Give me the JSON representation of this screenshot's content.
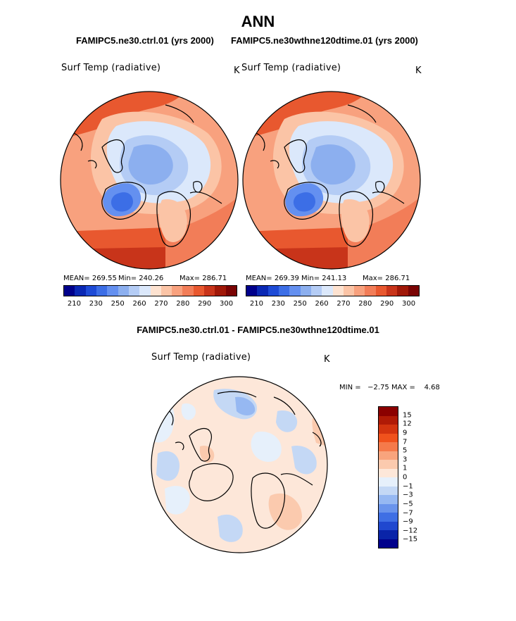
{
  "title": "ANN",
  "case_titles": [
    "FAMIPC5.ne30.ctrl.01 (yrs 2000)",
    "FAMIPC5.ne30wthne120dtime.01 (yrs 2000)"
  ],
  "diff_title": "FAMIPC5.ne30.ctrl.01 - FAMIPC5.ne30wthne120dtime.01",
  "chart_data": [
    {
      "type": "heatmap",
      "projection": "polar-stereographic-north",
      "title": "Surf Temp (radiative)",
      "units": "K",
      "mean_label": "MEAN= 269.55",
      "min_label": "Min= 240.26",
      "max_label": "Max= 286.71",
      "mean": 269.55,
      "min": 240.26,
      "max": 286.71,
      "colorbar_ticks": [
        "210",
        "230",
        "250",
        "260",
        "270",
        "280",
        "290",
        "300"
      ]
    },
    {
      "type": "heatmap",
      "projection": "polar-stereographic-north",
      "title": "Surf Temp (radiative)",
      "units": "K",
      "mean_label": "MEAN= 269.39",
      "min_label": "Min= 241.13",
      "max_label": "Max= 286.71",
      "mean": 269.39,
      "min": 241.13,
      "max": 286.71,
      "colorbar_ticks": [
        "210",
        "230",
        "250",
        "260",
        "270",
        "280",
        "290",
        "300"
      ]
    },
    {
      "type": "heatmap",
      "projection": "polar-stereographic-north",
      "title": "Surf Temp (radiative)",
      "units": "K",
      "minmax_label": "MIN =   −2.75 MAX =    4.68",
      "min": -2.75,
      "max": 4.68,
      "colorbar_levels": [
        "15",
        "12",
        "9",
        "7",
        "5",
        "3",
        "1",
        "0",
        "−1",
        "−3",
        "−5",
        "−7",
        "−9",
        "−12",
        "−15"
      ]
    }
  ],
  "colors": {
    "abs_bar": [
      "#00008b",
      "#0a28b4",
      "#1e4bd6",
      "#3c6ee6",
      "#6490f0",
      "#8cafef",
      "#b4ccf5",
      "#dbe8fb",
      "#fde2d0",
      "#fbc4a6",
      "#f8a17e",
      "#f27d58",
      "#e8582f",
      "#c8341a",
      "#a01808",
      "#7a0404"
    ],
    "diff_bar": [
      "#8b0000",
      "#b01a06",
      "#d3340f",
      "#f0521c",
      "#f57a4a",
      "#f8a47d",
      "#fbcaae",
      "#fde7d9",
      "#e6f0fb",
      "#c4d8f5",
      "#96b8f2",
      "#6a94ec",
      "#3f6fe4",
      "#2048cf",
      "#0a24a8",
      "#00008b"
    ],
    "land_outline": "#000000"
  }
}
